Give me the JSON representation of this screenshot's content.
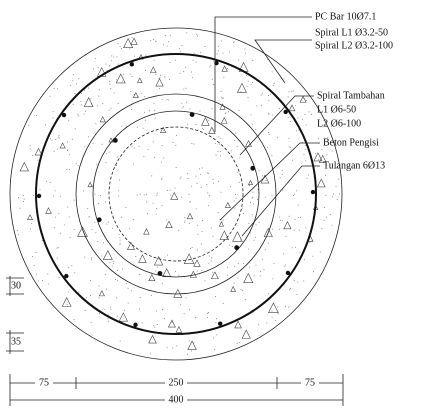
{
  "labels": {
    "pc_bar": "PC Bar 10Ø7.1",
    "spiral_l1": "Spiral L1 Ø3.2-50",
    "spiral_l2": "Spiral L2 Ø3.2-100",
    "spiral_tambahan": "Spiral Tambahan",
    "tambahan_l1": "L1 Ø6-50",
    "tambahan_l2": "L2 Ø6-100",
    "beton_pengisi": "Beton Pengisi",
    "tulangan": "Tulangan 6Ø13"
  },
  "dimensions": {
    "left_top": 30,
    "left_bottom": 35,
    "bottom_left": 75,
    "bottom_middle": 250,
    "bottom_right": 75,
    "total": 400
  }
}
